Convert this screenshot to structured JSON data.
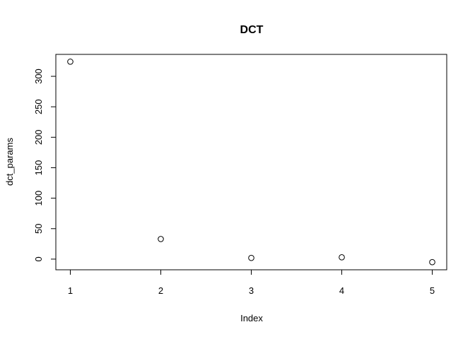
{
  "chart_data": {
    "type": "scatter",
    "title": "DCT",
    "xlabel": "Index",
    "ylabel": "dct_params",
    "x": [
      1,
      2,
      3,
      4,
      5
    ],
    "y": [
      324,
      33,
      2,
      3,
      -5
    ],
    "xlim": [
      0.84,
      5.16
    ],
    "ylim": [
      -17.5,
      336
    ],
    "xticks": [
      1,
      2,
      3,
      4,
      5
    ],
    "yticks": [
      0,
      50,
      100,
      150,
      200,
      250,
      300
    ],
    "grid": false,
    "legend": "none",
    "marker": "open-circle",
    "color": "#000000"
  }
}
